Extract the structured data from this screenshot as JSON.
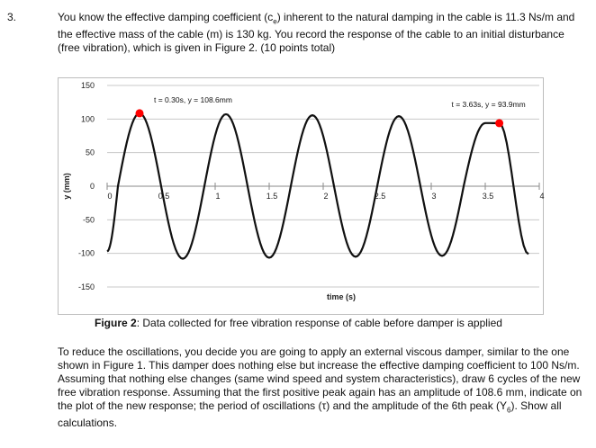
{
  "question_number": "3.",
  "intro": {
    "pre": "You know the effective damping coefficient (c",
    "sub": "e",
    "post": ") inherent to the natural damping in the cable is 11.3 Ns/m and the effective mass of the cable (m) is 130 kg. You record the response of the cable to an initial disturbance (free vibration), which is given in Figure 2. (10 points total)"
  },
  "caption": {
    "label": "Figure 2",
    "text": ": Data collected for free vibration response of cable before damper is applied"
  },
  "outro": {
    "pre": "To reduce the oscillations, you decide you are going to apply an external viscous damper, similar to the one shown in Figure 1. This damper does nothing else but increase the effective damping coefficient to 100 Ns/m. Assuming that nothing else changes (same wind speed and system characteristics), draw 6 cycles of the new free vibration response. Assuming that the first positive peak again has an amplitude of 108.6 mm, indicate on the plot of the new response; the period of oscillations (τ) and the amplitude of the 6th peak (Y",
    "sub": "6",
    "post": "). Show all calculations."
  },
  "chart_data": {
    "type": "line",
    "xlabel": "time (s)",
    "ylabel": "y (mm)",
    "xlim": [
      0,
      4
    ],
    "ylim": [
      -150,
      150
    ],
    "x_ticks": [
      0,
      0.5,
      1,
      1.5,
      2,
      2.5,
      3,
      3.5,
      4
    ],
    "x_tick_labels": [
      "0",
      "0.5",
      "1",
      "1.5",
      "2",
      "2.5",
      "3",
      "3.5",
      "4"
    ],
    "y_ticks": [
      -150,
      -100,
      -50,
      0,
      50,
      100,
      150
    ],
    "y_tick_labels": [
      "-150",
      "-100",
      "-50",
      "0",
      "50",
      "100",
      "150"
    ],
    "grid": "horizontal",
    "line_color": "#111111",
    "marker_color": "#ff0000",
    "series": [
      {
        "x": [
          0,
          0.1,
          0.3,
          0.5,
          0.7,
          0.9,
          1.1,
          1.3,
          1.5,
          1.7,
          1.9,
          2.1,
          2.3,
          2.5,
          2.7,
          2.9,
          3.1,
          3.3,
          3.5,
          3.63,
          3.9
        ],
        "y": [
          -97,
          0,
          108.6,
          0,
          -107.9,
          0,
          107.2,
          0,
          -106.5,
          0,
          105.7,
          0,
          -105,
          0,
          104.3,
          0,
          -103.6,
          0,
          94,
          93.9,
          -101
        ]
      }
    ],
    "annotations": [
      {
        "text": "t = 0.30s, y = 108.6mm",
        "x": 0.3,
        "y": 108.6
      },
      {
        "text": "t = 3.63s, y = 93.9mm",
        "x": 3.63,
        "y": 93.9
      }
    ]
  }
}
